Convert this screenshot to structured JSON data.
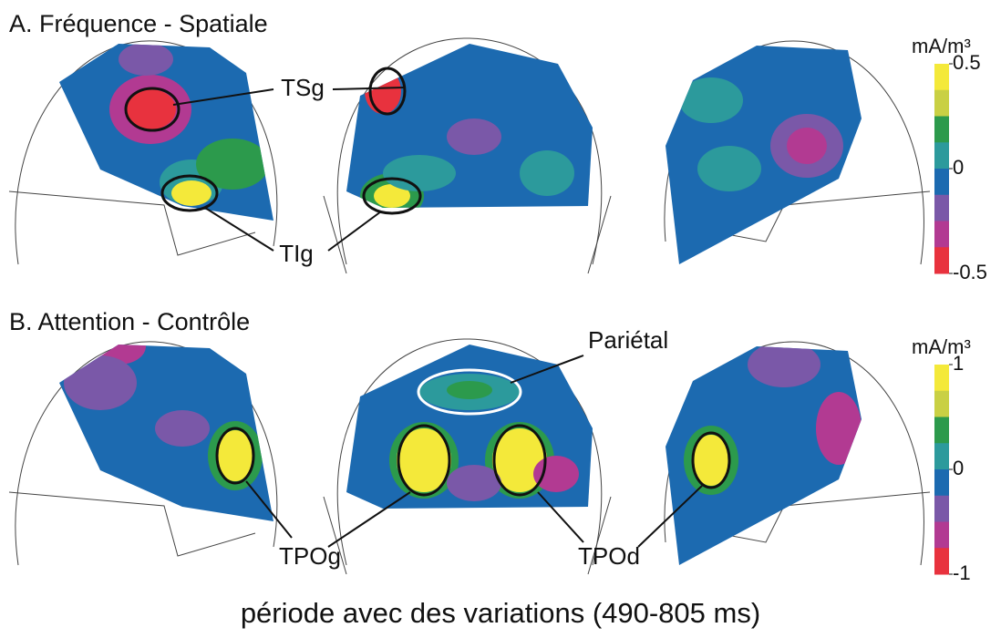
{
  "title_a": "A.  Fréquence - Spatiale",
  "title_b": "B.  Attention - Contrôle",
  "colorbar_a": {
    "unit": "mA/m³",
    "lim": [
      -0.5,
      0.5
    ],
    "ticks": [
      0.5,
      0,
      -0.5
    ],
    "colors": [
      "#f4e93a",
      "#c9d044",
      "#2c9a4c",
      "#2c9a9c",
      "#1c6ab0",
      "#7a58a8",
      "#b23a92",
      "#e8323e"
    ]
  },
  "colorbar_b": {
    "unit": "mA/m³",
    "lim": [
      -1,
      1
    ],
    "ticks": [
      1,
      0,
      -1
    ],
    "colors": [
      "#f4e93a",
      "#c9d044",
      "#2c9a4c",
      "#2c9a9c",
      "#1c6ab0",
      "#7a58a8",
      "#b23a92",
      "#e8323e"
    ]
  },
  "labels_a": [
    "TSg",
    "TIg"
  ],
  "labels_b": [
    "Pariétal",
    "TPOg",
    "TPOd"
  ],
  "caption": "période avec des variations (490-805 ms)"
}
